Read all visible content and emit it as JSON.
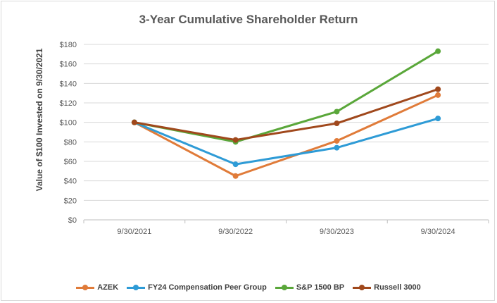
{
  "chart_data": {
    "type": "line",
    "title": "3-Year Cumulative Shareholder Return",
    "xlabel": "",
    "ylabel": "Value of $100 Invested on 9/30/2021",
    "categories": [
      "9/30/2021",
      "9/30/2022",
      "9/30/2023",
      "9/30/2024"
    ],
    "y_ticks": [
      "$0",
      "$20",
      "$40",
      "$60",
      "$80",
      "$100",
      "$120",
      "$140",
      "$160",
      "$180"
    ],
    "ylim": [
      0,
      180
    ],
    "grid": true,
    "legend_position": "bottom",
    "series": [
      {
        "name": "AZEK",
        "color": "#E07B39",
        "values": [
          100,
          45,
          81,
          128
        ]
      },
      {
        "name": "FY24 Compensation Peer Group",
        "color": "#2E9BD6",
        "values": [
          100,
          57,
          74,
          104
        ]
      },
      {
        "name": "S&P 1500 BP",
        "color": "#5AA73A",
        "values": [
          100,
          80,
          111,
          173
        ]
      },
      {
        "name": "Russell 3000",
        "color": "#A0481C",
        "values": [
          100,
          82,
          99,
          134
        ]
      }
    ]
  }
}
